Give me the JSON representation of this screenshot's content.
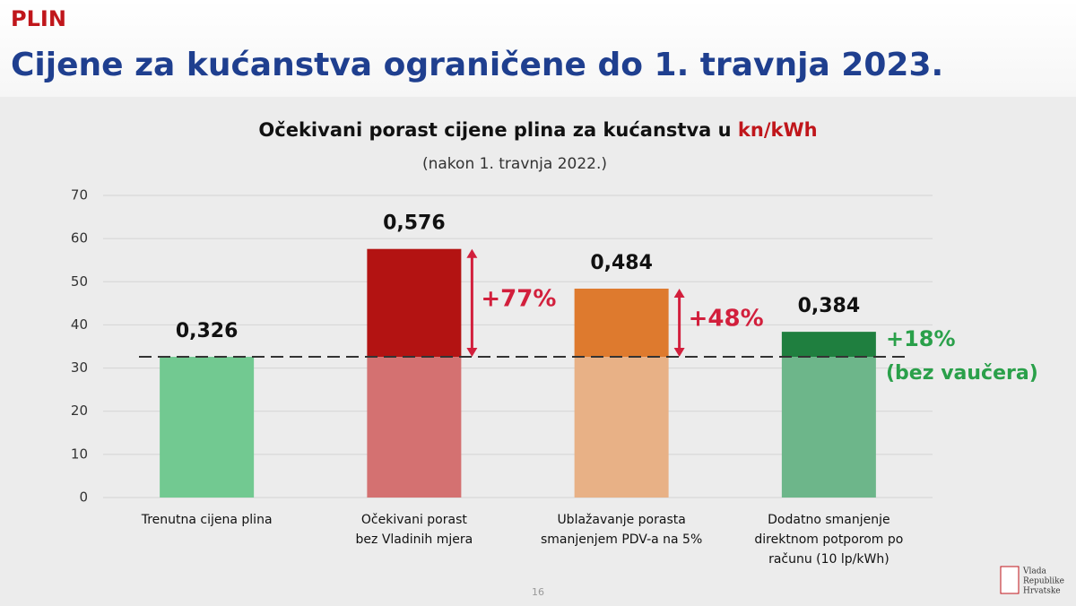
{
  "header": {
    "kicker": "PLIN",
    "title": "Cijene za kućanstva ograničene do 1. travnja 2023."
  },
  "chart_data": {
    "type": "bar",
    "title": "Očekivani porast cijene plina za kućanstva u ",
    "title_unit": "kn/kWh",
    "subtitle": "(nakon 1. travnja 2022.)",
    "categories": [
      [
        "Trenutna cijena plina"
      ],
      [
        "Očekivani porast",
        "bez Vladinih mjera"
      ],
      [
        "Ublažavanje porasta",
        "smanjenjem PDV-a na 5%"
      ],
      [
        "Dodatno smanjenje",
        "direktnom potporom po",
        "računu (10 lp/kWh)"
      ]
    ],
    "values": [
      32.6,
      57.6,
      48.4,
      38.4
    ],
    "value_labels": [
      "0,326",
      "0,576",
      "0,484",
      "0,384"
    ],
    "colors": [
      "#72c991",
      "#b31312",
      "#de7a2e",
      "#1f7f3f"
    ],
    "base_colors": [
      "#72c991",
      "#d47171",
      "#e8b186",
      "#6db68a"
    ],
    "annotations": [
      "+77%",
      "+48%",
      "+18%"
    ],
    "annotation_colors": [
      "#d21f3c",
      "#d21f3c",
      "#2aa04a"
    ],
    "annotation_note": "(bez vaučera)",
    "ylim": [
      0,
      70
    ],
    "yticks": [
      0,
      10,
      20,
      30,
      40,
      50,
      60,
      70
    ],
    "grid": true
  },
  "footer": {
    "page_number": "16",
    "logo_lines": [
      "Vlada",
      "Republike",
      "Hrvatske"
    ]
  }
}
